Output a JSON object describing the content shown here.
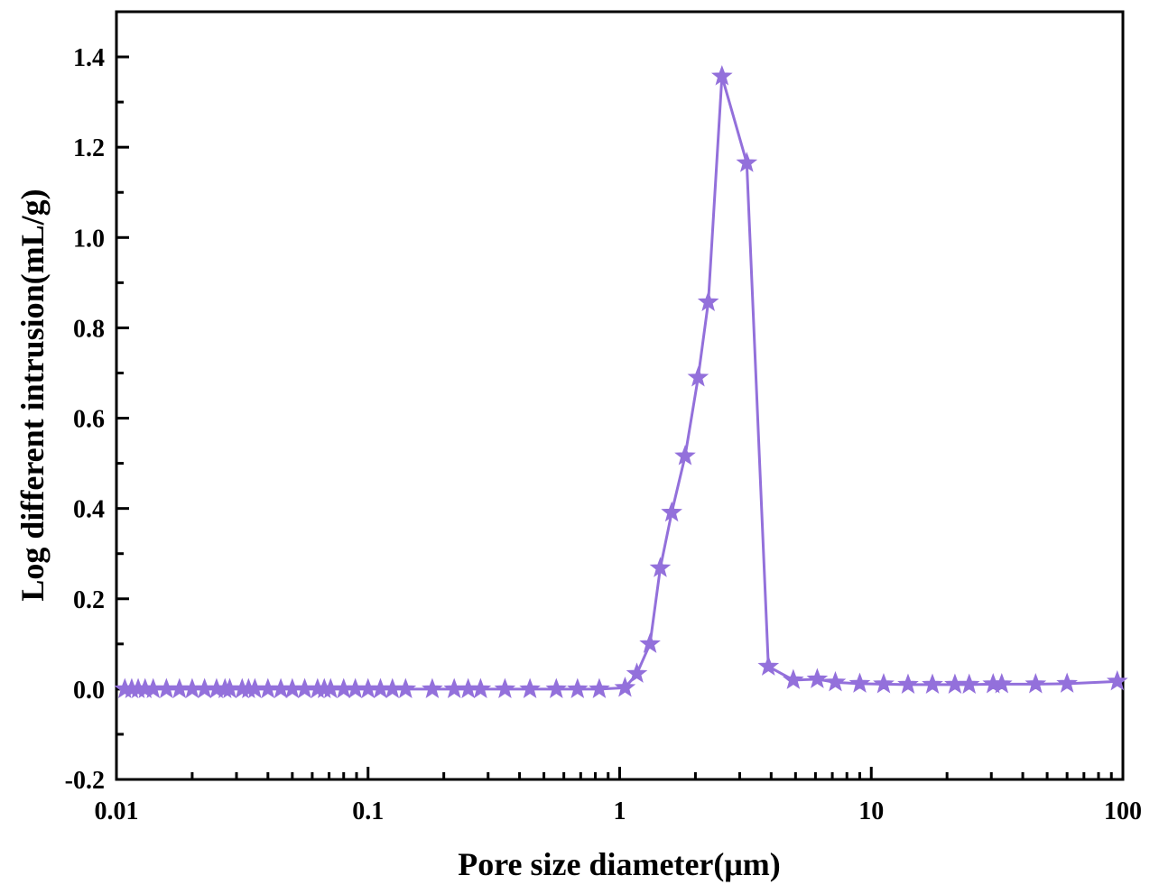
{
  "chart_data": {
    "type": "line",
    "title": "",
    "xlabel": "Pore size diameter(μm)",
    "ylabel": "Log different intrusion(mL/g)",
    "xscale": "log",
    "xlim": [
      0.01,
      100
    ],
    "ylim": [
      -0.2,
      1.5
    ],
    "xticks": [
      "0.01",
      "0.1",
      "1",
      "10",
      "100"
    ],
    "yticks": [
      "-0.2",
      "0.0",
      "0.2",
      "0.4",
      "0.6",
      "0.8",
      "1.0",
      "1.2",
      "1.4"
    ],
    "grid": false,
    "legend": "none",
    "marker": "star",
    "color": "#9370DB",
    "series": [
      {
        "x": [
          0.0108,
          0.0115,
          0.0122,
          0.013,
          0.014,
          0.0158,
          0.0178,
          0.02,
          0.0224,
          0.025,
          0.027,
          0.0282,
          0.0316,
          0.0335,
          0.0355,
          0.04,
          0.045,
          0.05,
          0.056,
          0.063,
          0.067,
          0.071,
          0.08,
          0.089,
          0.1,
          0.112,
          0.125,
          0.141,
          0.18,
          0.22,
          0.25,
          0.28,
          0.35,
          0.44,
          0.56,
          0.68,
          0.83,
          1.05,
          1.17,
          1.32,
          1.45,
          1.61,
          1.82,
          2.05,
          2.25,
          2.55,
          3.2,
          3.9,
          4.9,
          6.1,
          7.2,
          9.0,
          11.2,
          14.0,
          17.5,
          21.5,
          24.5,
          30.5,
          33.0,
          45.0,
          60.0,
          95.0
        ],
        "values": [
          0.0,
          0.0,
          0.0,
          0.0,
          0.0,
          0.0,
          0.0,
          0.0,
          0.0,
          0.0,
          0.0,
          0.0,
          0.0,
          0.0,
          0.0,
          0.0,
          0.0,
          0.0,
          0.0,
          0.0,
          0.0,
          0.0,
          0.0,
          0.0,
          0.0,
          0.0,
          0.0,
          0.0,
          0.0,
          0.0,
          0.0,
          0.0,
          0.0,
          0.0,
          0.0,
          0.0,
          0.0,
          0.003,
          0.034,
          0.1,
          0.268,
          0.391,
          0.516,
          0.69,
          0.857,
          1.357,
          1.165,
          0.05,
          0.02,
          0.022,
          0.015,
          0.012,
          0.011,
          0.01,
          0.01,
          0.01,
          0.01,
          0.011,
          0.011,
          0.011,
          0.012,
          0.017
        ]
      }
    ]
  }
}
